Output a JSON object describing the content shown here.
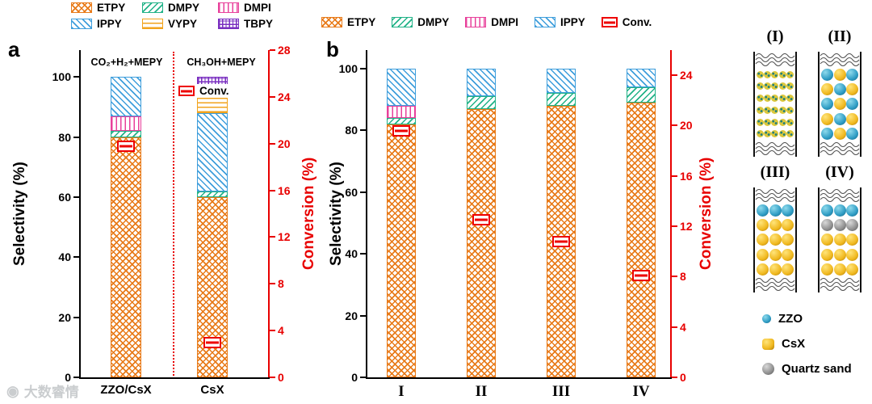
{
  "watermark": {
    "text": "大数睿情"
  },
  "series_styles": {
    "ETPY": {
      "color": "#E87A18",
      "pattern": "cross"
    },
    "DMPY": {
      "color": "#21B287",
      "pattern": "diag-up"
    },
    "DMPI": {
      "color": "#E8409B",
      "pattern": "vertical"
    },
    "IPPY": {
      "color": "#3E9EDC",
      "pattern": "diag-down"
    },
    "VYPY": {
      "color": "#F2A31C",
      "pattern": "horizontal"
    },
    "TBPY": {
      "color": "#7A2FC0",
      "pattern": "grid"
    },
    "Conv.": {
      "color": "#EE0000",
      "pattern": "marker"
    }
  },
  "chart_data": [
    {
      "panel_label": "a",
      "type": "bar",
      "stacked": true,
      "categories": [
        "ZZO/CsX",
        "CsX"
      ],
      "series": [
        {
          "name": "ETPY",
          "values": [
            80,
            60
          ]
        },
        {
          "name": "DMPY",
          "values": [
            2,
            2
          ]
        },
        {
          "name": "DMPI",
          "values": [
            5,
            0
          ]
        },
        {
          "name": "IPPY",
          "values": [
            13,
            26
          ]
        },
        {
          "name": "VYPY",
          "values": [
            0,
            9
          ]
        },
        {
          "name": "TBPY",
          "values": [
            0,
            3
          ]
        }
      ],
      "conversion": {
        "name": "Conv.",
        "values": [
          19.8,
          3.0
        ]
      },
      "left_axis": {
        "label": "Selectivity (%)",
        "ticks": [
          0,
          20,
          40,
          60,
          80,
          100
        ],
        "max": 109,
        "color": "#000000"
      },
      "right_axis": {
        "label": "Conversion (%)",
        "ticks": [
          0,
          4,
          8,
          12,
          16,
          20,
          24,
          28
        ],
        "max": 28,
        "color": "#E80000"
      },
      "annotations": [
        "CO₂+H₂+MEPY",
        "CH₃OH+MEPY"
      ],
      "legend_rows": [
        [
          "ETPY",
          "DMPY",
          "DMPI"
        ],
        [
          "IPPY",
          "VYPY",
          "TBPY"
        ]
      ],
      "inline_legend": "Conv."
    },
    {
      "panel_label": "b",
      "type": "bar",
      "stacked": true,
      "categories": [
        "I",
        "II",
        "III",
        "IV"
      ],
      "series": [
        {
          "name": "ETPY",
          "values": [
            82,
            87,
            88,
            89
          ]
        },
        {
          "name": "DMPY",
          "values": [
            2,
            4,
            4,
            5
          ]
        },
        {
          "name": "DMPI",
          "values": [
            4,
            0,
            0,
            0
          ]
        },
        {
          "name": "IPPY",
          "values": [
            12,
            9,
            8,
            6
          ]
        }
      ],
      "conversion": {
        "name": "Conv.",
        "values": [
          19.6,
          12.5,
          10.8,
          8.1
        ]
      },
      "left_axis": {
        "label": "Selectivity (%)",
        "ticks": [
          0,
          20,
          40,
          60,
          80,
          100
        ],
        "max": 106,
        "color": "#000000"
      },
      "right_axis": {
        "label": "Conversion (%)",
        "ticks": [
          0,
          4,
          8,
          12,
          16,
          20,
          24
        ],
        "max": 26,
        "color": "#E80000"
      },
      "legend_row": [
        "ETPY",
        "DMPY",
        "DMPI",
        "IPPY",
        "Conv."
      ]
    }
  ],
  "schematic": {
    "panels": [
      {
        "label": "(I)",
        "bed": "fine"
      },
      {
        "label": "(II)",
        "layout": [
          [
            "Z",
            "C",
            "Z"
          ],
          [
            "C",
            "Z",
            "C"
          ],
          [
            "Z",
            "C",
            "Z"
          ],
          [
            "C",
            "Z",
            "C"
          ],
          [
            "Z",
            "C",
            "Z"
          ]
        ]
      },
      {
        "label": "(III)",
        "layout": [
          [
            "Z",
            "Z",
            "Z"
          ],
          [
            "C",
            "C",
            "C"
          ],
          [
            "C",
            "C",
            "C"
          ],
          [
            "C",
            "C",
            "C"
          ],
          [
            "C",
            "C",
            "C"
          ]
        ]
      },
      {
        "label": "(IV)",
        "layout": [
          [
            "Z",
            "Z",
            "Z"
          ],
          [
            "Q",
            "Q",
            "Q"
          ],
          [
            "C",
            "C",
            "C"
          ],
          [
            "C",
            "C",
            "C"
          ],
          [
            "C",
            "C",
            "C"
          ]
        ]
      }
    ],
    "legend": [
      {
        "name": "ZZO",
        "code": "Z"
      },
      {
        "name": "CsX",
        "code": "C"
      },
      {
        "name": "Quartz sand",
        "code": "Q"
      }
    ]
  }
}
